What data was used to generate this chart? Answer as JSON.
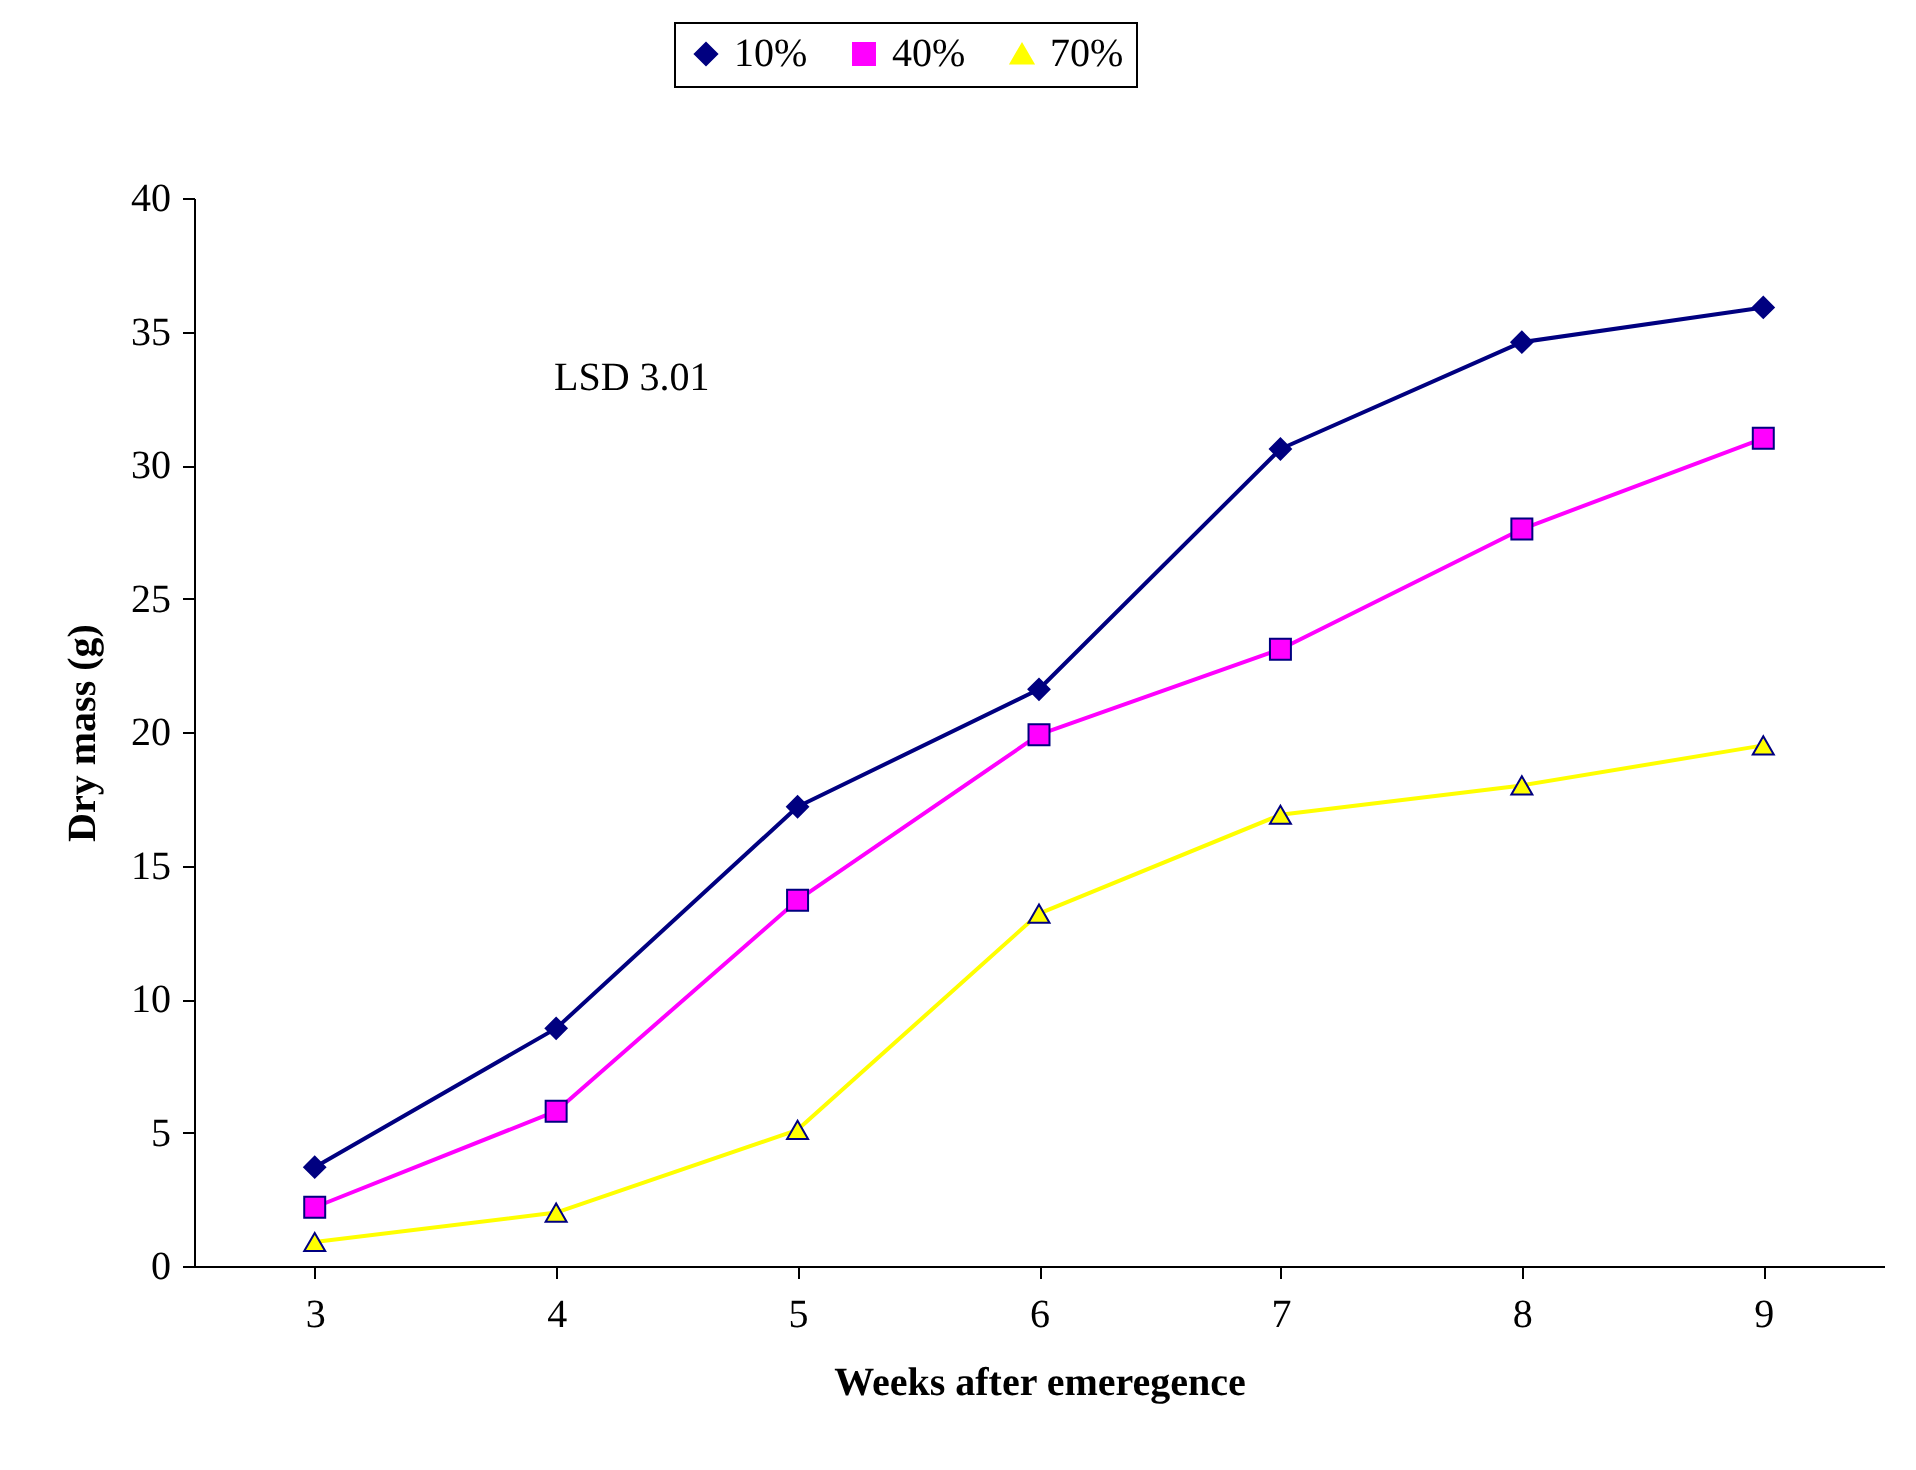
{
  "chart_data": {
    "type": "line",
    "xlabel": "Weeks after emeregence",
    "ylabel": "Dry mass (g)",
    "categories": [
      "3",
      "4",
      "5",
      "6",
      "7",
      "8",
      "9"
    ],
    "series": [
      {
        "name": "10%",
        "color": "#000080",
        "marker": "diamond",
        "values": [
          3.7,
          8.9,
          17.2,
          21.6,
          30.6,
          34.6,
          35.9
        ]
      },
      {
        "name": "40%",
        "color": "#ff00ff",
        "marker": "square",
        "values": [
          2.2,
          5.8,
          13.7,
          19.9,
          23.1,
          27.6,
          31.0
        ]
      },
      {
        "name": "70%",
        "color": "#ffff00",
        "marker": "triangle",
        "values": [
          0.9,
          2.0,
          5.1,
          13.2,
          16.9,
          18.0,
          19.5
        ]
      }
    ],
    "ylim": [
      0,
      40
    ],
    "yticks": [
      0,
      5,
      10,
      15,
      20,
      25,
      30,
      35,
      40
    ],
    "grid": false,
    "legend": "top",
    "annotations": [
      "LSD 3.01"
    ]
  }
}
